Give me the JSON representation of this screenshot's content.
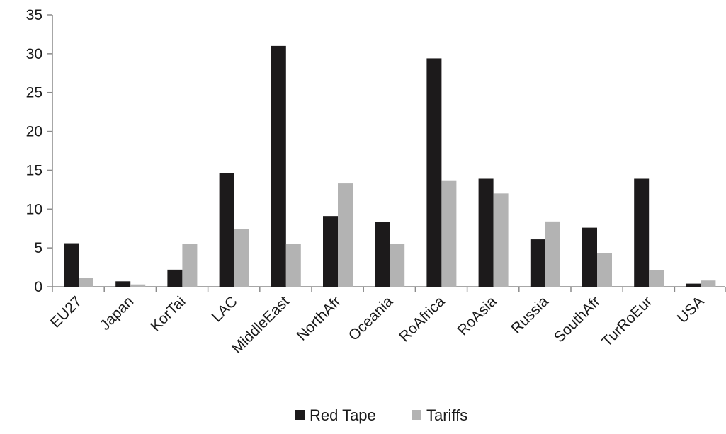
{
  "chart_data": {
    "type": "bar",
    "title": "",
    "xlabel": "",
    "ylabel": "",
    "ylim": [
      0,
      35
    ],
    "yticks": [
      0,
      5,
      10,
      15,
      20,
      25,
      30,
      35
    ],
    "grid": false,
    "legend_position": "bottom",
    "categories": [
      "EU27",
      "Japan",
      "KorTai",
      "LAC",
      "MiddleEast",
      "NorthAfr",
      "Oceania",
      "RoAfrica",
      "RoAsia",
      "Russia",
      "SouthAfr",
      "TurRoEur",
      "USA"
    ],
    "series": [
      {
        "name": "Red Tape",
        "color": "#1c1a1b",
        "values": [
          5.6,
          0.7,
          2.2,
          14.6,
          31.0,
          9.1,
          8.3,
          29.4,
          13.9,
          6.1,
          7.6,
          13.9,
          0.4
        ]
      },
      {
        "name": "Tariffs",
        "color": "#b3b3b3",
        "values": [
          1.1,
          0.3,
          5.5,
          7.4,
          5.5,
          13.3,
          5.5,
          13.7,
          12.0,
          8.4,
          4.3,
          2.1,
          0.8
        ]
      }
    ]
  }
}
